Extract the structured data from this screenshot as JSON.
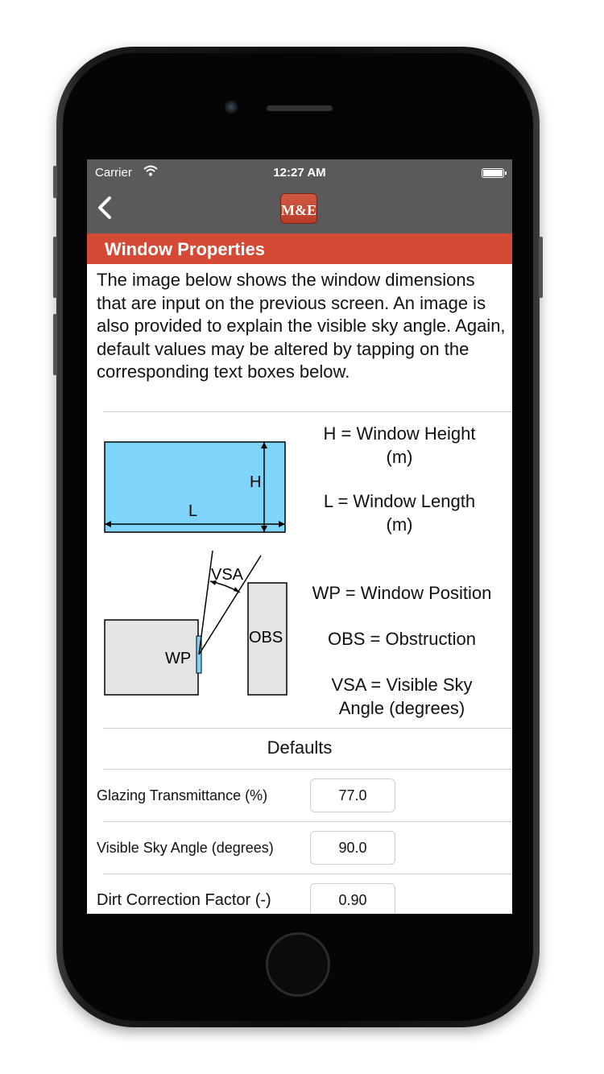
{
  "status": {
    "carrier": "Carrier",
    "time": "12:27 AM"
  },
  "nav": {
    "back_icon": "chevron-left-icon",
    "logo_text": "M&E"
  },
  "section": {
    "title": "Window Properties",
    "intro": "The image below shows the window dimensions that are input on the previous screen. An image is also provided to explain the visible sky angle. Again, default values may be altered by tapping on the corresponding text boxes below."
  },
  "diagram1": {
    "label_h": "H",
    "label_l": "L",
    "legend": [
      "H = Window Height (m)",
      "L = Window Length (m)"
    ]
  },
  "diagram2": {
    "label_vsa": "VSA",
    "label_wp": "WP",
    "label_obs": "OBS",
    "legend": [
      "WP = Window Position",
      "OBS = Obstruction",
      "VSA = Visible Sky Angle (degrees)"
    ]
  },
  "defaults": {
    "title": "Defaults",
    "rows": [
      {
        "label": "Glazing Transmittance (%)",
        "value": "77.0"
      },
      {
        "label": "Visible Sky Angle (degrees)",
        "value": "90.0"
      },
      {
        "label": "Dirt Correction Factor (-)",
        "value": "0.90"
      }
    ]
  },
  "colors": {
    "header": "#d44a34",
    "nav": "#5a5a5a",
    "window_glass": "#7fd4fb",
    "wall": "#e4e4e4"
  }
}
